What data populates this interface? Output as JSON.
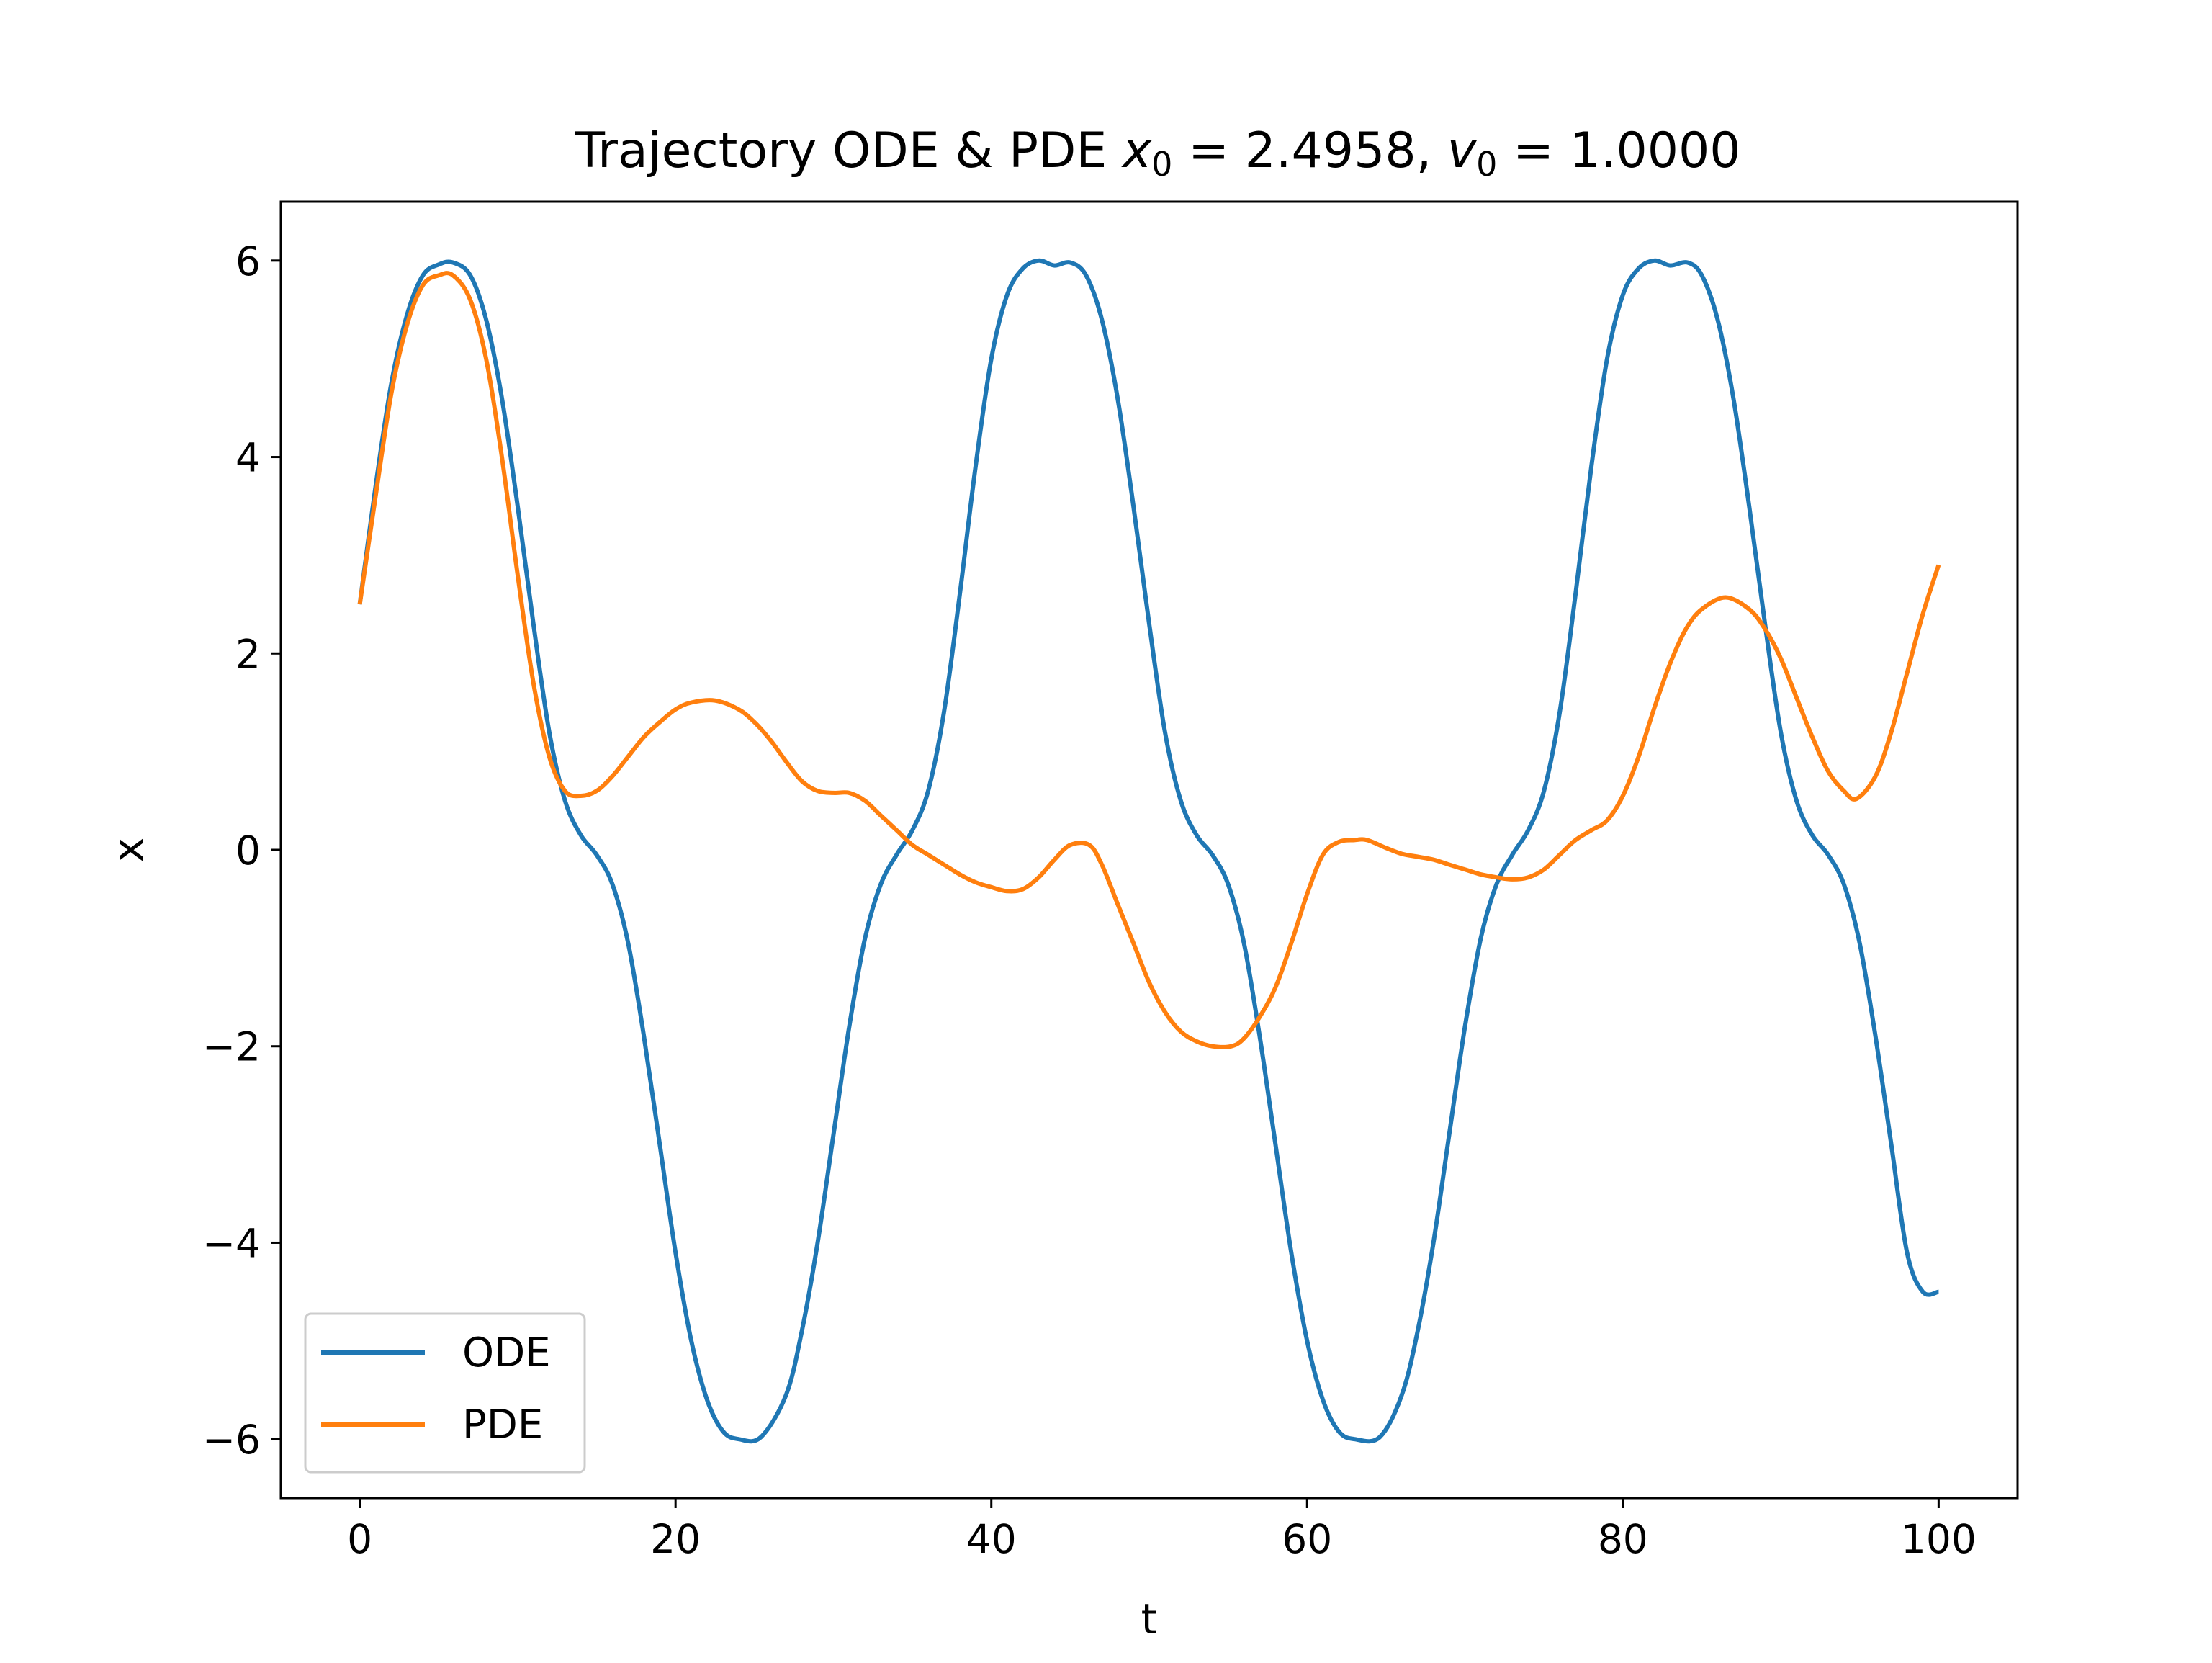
{
  "chart_data": {
    "type": "line",
    "title": {
      "prefix": "Trajectory ODE & PDE ",
      "x0_symbol": "x",
      "x0_subscript": "0",
      "x0_value": " = 2.4958, ",
      "v0_symbol": "v",
      "v0_subscript": "0",
      "v0_value": " = 1.0000"
    },
    "xlabel": "t",
    "ylabel": "x",
    "xlim": [
      -5,
      105
    ],
    "ylim": [
      -6.6,
      6.6
    ],
    "xticks": [
      0,
      20,
      40,
      60,
      80,
      100
    ],
    "xtick_labels": [
      "0",
      "20",
      "40",
      "60",
      "80",
      "100"
    ],
    "yticks": [
      -6,
      -4,
      -2,
      0,
      2,
      4,
      6
    ],
    "ytick_labels": [
      "−6",
      "−4",
      "−2",
      "0",
      "2",
      "4",
      "6"
    ],
    "grid": false,
    "legend_position": "lower-left",
    "series": [
      {
        "name": "ODE",
        "color": "#1f77b4",
        "x": [
          0,
          1,
          2,
          3,
          4,
          5,
          5.9,
          7,
          8,
          9,
          10,
          11,
          12,
          13,
          14,
          15,
          16,
          17,
          18,
          19,
          20,
          21,
          22,
          23,
          24,
          25.4,
          27,
          28,
          29,
          30,
          31,
          32,
          33,
          34,
          35,
          36,
          37,
          38,
          39,
          40,
          41,
          42,
          43,
          44,
          45,
          46,
          47,
          48,
          49,
          50,
          51,
          52,
          53,
          54,
          55,
          56,
          57,
          58,
          59,
          60,
          61,
          62,
          63,
          64.6,
          66,
          67,
          68,
          69,
          70,
          71,
          72,
          73,
          74,
          75,
          76,
          77,
          78,
          79,
          80,
          81,
          82,
          83,
          84.1,
          85,
          86,
          87,
          88,
          89,
          90,
          91,
          92,
          93,
          94,
          95,
          96,
          97,
          98,
          99,
          100
        ],
        "values": [
          2.5,
          3.7,
          4.75,
          5.45,
          5.85,
          5.96,
          5.98,
          5.85,
          5.4,
          4.6,
          3.5,
          2.3,
          1.2,
          0.5,
          0.15,
          -0.05,
          -0.35,
          -0.95,
          -1.9,
          -3.0,
          -4.1,
          -5.0,
          -5.6,
          -5.92,
          -6.0,
          -5.98,
          -5.55,
          -4.9,
          -4.0,
          -2.9,
          -1.8,
          -0.9,
          -0.35,
          -0.05,
          0.2,
          0.6,
          1.4,
          2.6,
          3.9,
          5.0,
          5.65,
          5.92,
          6.0,
          5.95,
          5.98,
          5.85,
          5.4,
          4.6,
          3.5,
          2.3,
          1.2,
          0.5,
          0.15,
          -0.05,
          -0.35,
          -0.95,
          -1.9,
          -3.0,
          -4.1,
          -5.0,
          -5.6,
          -5.92,
          -6.0,
          -5.98,
          -5.55,
          -4.9,
          -4.0,
          -2.9,
          -1.8,
          -0.9,
          -0.35,
          -0.05,
          0.2,
          0.6,
          1.4,
          2.6,
          3.9,
          5.0,
          5.65,
          5.92,
          6.0,
          5.95,
          5.98,
          5.85,
          5.4,
          4.6,
          3.5,
          2.3,
          1.2,
          0.5,
          0.15,
          -0.05,
          -0.35,
          -0.95,
          -1.9,
          -3.0,
          -4.1,
          -4.5,
          -4.5
        ]
      },
      {
        "name": "PDE",
        "color": "#ff7f0e",
        "x": [
          0,
          1,
          2,
          3,
          4,
          5,
          5.9,
          7,
          8,
          9,
          10,
          11,
          12,
          13,
          14,
          15,
          16,
          17,
          18,
          19,
          20,
          21,
          22.5,
          24,
          25,
          26,
          27,
          28,
          29,
          30,
          31,
          32,
          33,
          34,
          35,
          36,
          37,
          38,
          39,
          40,
          41,
          42,
          43,
          44,
          45,
          46.2,
          47,
          48,
          49,
          50,
          51,
          52,
          53,
          54,
          55.2,
          56,
          57,
          58,
          59,
          60,
          61,
          62,
          63,
          63.8,
          65,
          66,
          67,
          68,
          69,
          70,
          71,
          72,
          73,
          74,
          75,
          76,
          77,
          78,
          79,
          80,
          81,
          82,
          83,
          84,
          85,
          86.5,
          88,
          89,
          90,
          91,
          92,
          93,
          94,
          94.8,
          96,
          97,
          98,
          99,
          100
        ],
        "values": [
          2.5,
          3.6,
          4.65,
          5.35,
          5.75,
          5.85,
          5.85,
          5.6,
          5.0,
          4.0,
          2.8,
          1.7,
          0.95,
          0.6,
          0.55,
          0.6,
          0.75,
          0.95,
          1.15,
          1.3,
          1.43,
          1.5,
          1.52,
          1.43,
          1.3,
          1.12,
          0.9,
          0.7,
          0.6,
          0.58,
          0.58,
          0.5,
          0.35,
          0.2,
          0.05,
          -0.05,
          -0.15,
          -0.25,
          -0.33,
          -0.38,
          -0.42,
          -0.4,
          -0.28,
          -0.1,
          0.05,
          0.05,
          -0.15,
          -0.55,
          -0.95,
          -1.35,
          -1.65,
          -1.85,
          -1.95,
          -2.0,
          -2.0,
          -1.92,
          -1.7,
          -1.4,
          -0.95,
          -0.45,
          -0.05,
          0.08,
          0.1,
          0.1,
          0.02,
          -0.04,
          -0.07,
          -0.1,
          -0.15,
          -0.2,
          -0.25,
          -0.28,
          -0.3,
          -0.28,
          -0.2,
          -0.05,
          0.1,
          0.2,
          0.3,
          0.55,
          0.95,
          1.45,
          1.9,
          2.25,
          2.45,
          2.57,
          2.45,
          2.25,
          1.95,
          1.55,
          1.15,
          0.8,
          0.6,
          0.52,
          0.75,
          1.2,
          1.8,
          2.4,
          2.9
        ]
      }
    ]
  }
}
